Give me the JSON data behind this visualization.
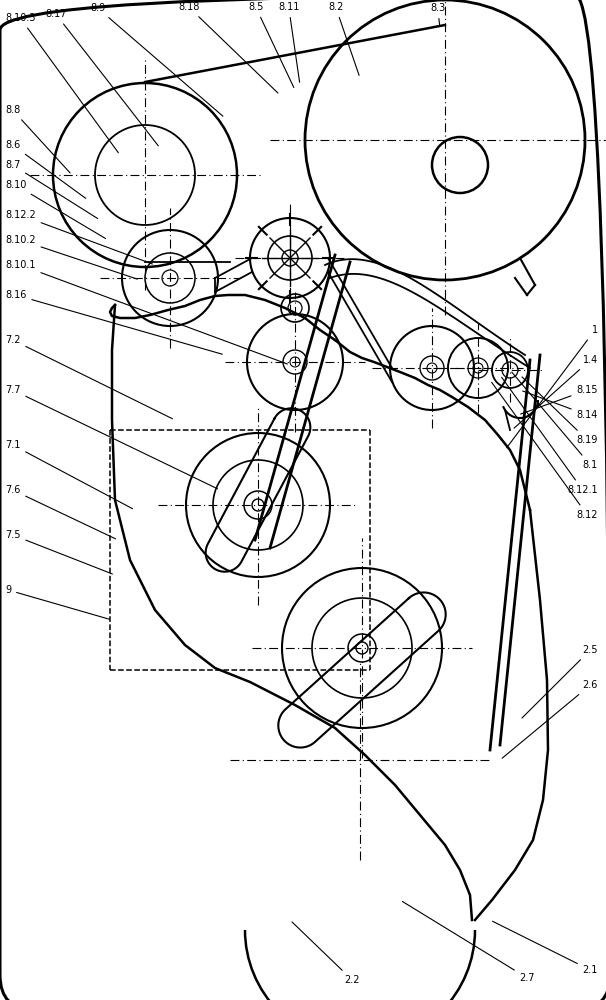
{
  "bg_color": "#ffffff",
  "line_color": "#000000",
  "fs": 7.5
}
